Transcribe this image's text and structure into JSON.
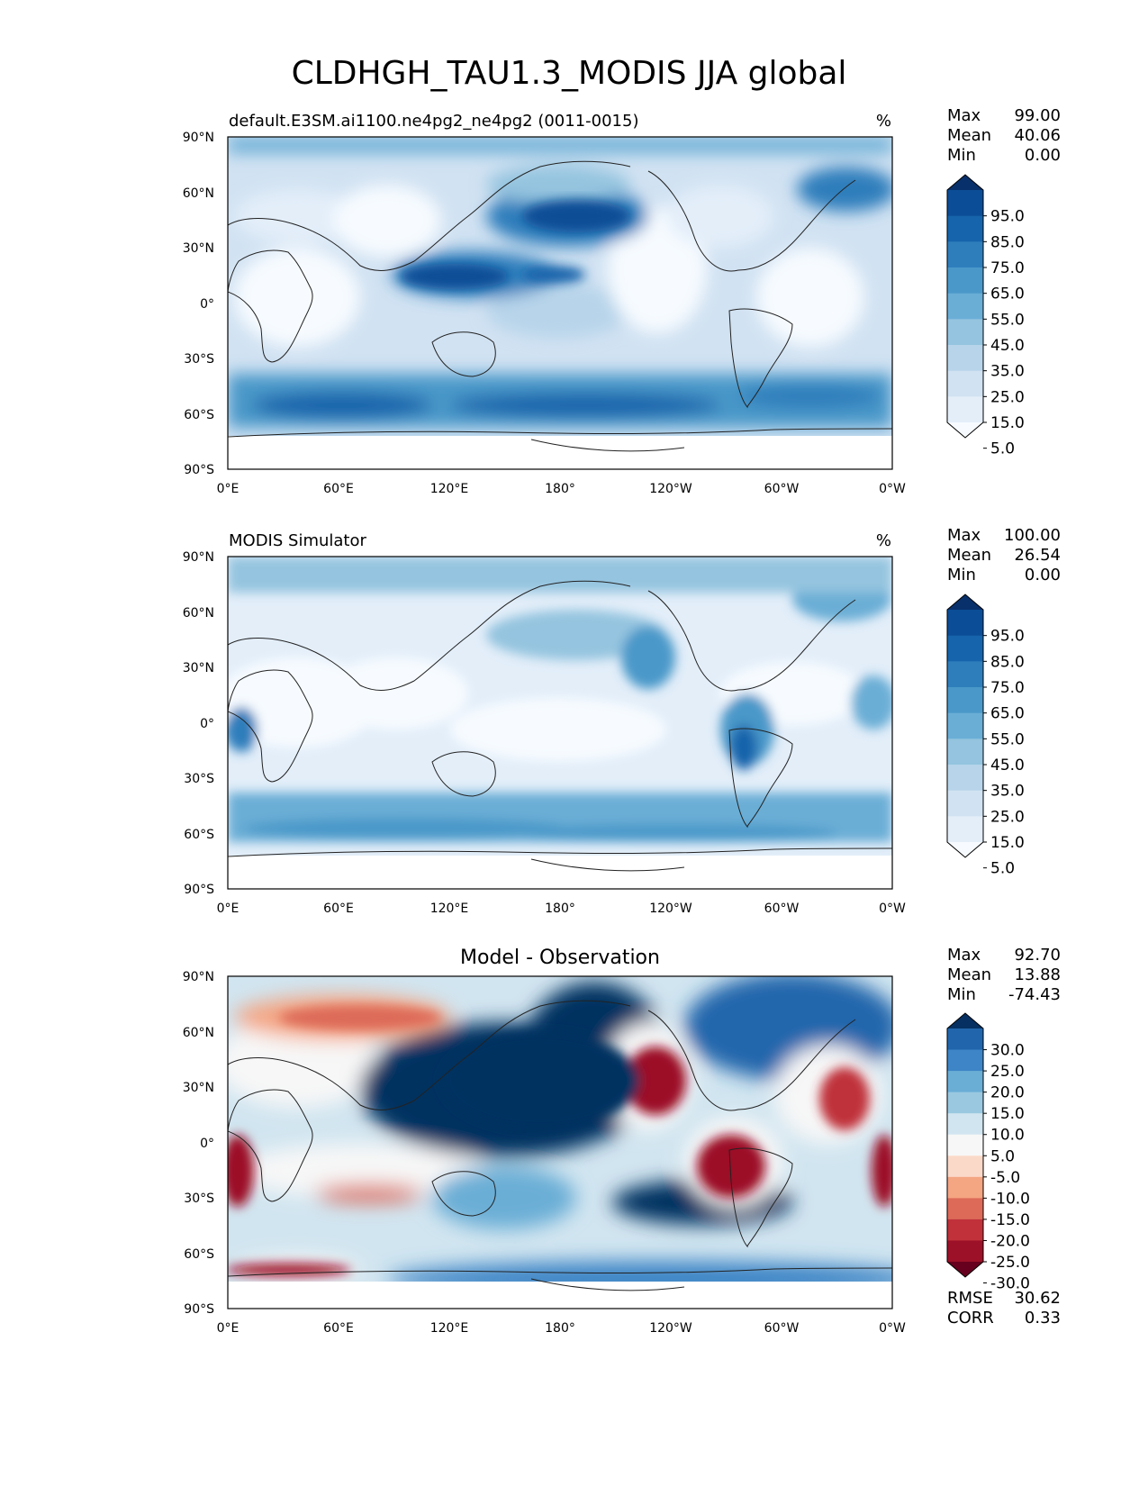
{
  "title": "CLDHGH_TAU1.3_MODIS JJA global",
  "lat_ticks": [
    "90°N",
    "60°N",
    "30°N",
    "0°",
    "30°S",
    "60°S",
    "90°S"
  ],
  "lon_ticks": [
    "0°E",
    "60°E",
    "120°E",
    "180°",
    "120°W",
    "60°W",
    "0°W"
  ],
  "panels": [
    {
      "title": "default.E3SM.ai1100.ne4pg2_ne4pg2 (0011-0015)",
      "units": "%",
      "stats": [
        {
          "label": "Max",
          "value": "99.00"
        },
        {
          "label": "Mean",
          "value": "40.06"
        },
        {
          "label": "Min",
          "value": "0.00"
        }
      ],
      "colorbar_labels": [
        "95.0",
        "85.0",
        "75.0",
        "65.0",
        "55.0",
        "45.0",
        "35.0",
        "25.0",
        "15.0",
        "5.0"
      ],
      "colorbar_colors": [
        "#08306b",
        "#0b4d96",
        "#1664ab",
        "#2f7ebc",
        "#4a98c9",
        "#6aaed6",
        "#94c4df",
        "#b7d4ea",
        "#d1e2f2",
        "#e3eef9",
        "#f7fbff"
      ]
    },
    {
      "title": "MODIS Simulator",
      "units": "%",
      "stats": [
        {
          "label": "Max",
          "value": "100.00"
        },
        {
          "label": "Mean",
          "value": "26.54"
        },
        {
          "label": "Min",
          "value": "0.00"
        }
      ],
      "colorbar_labels": [
        "95.0",
        "85.0",
        "75.0",
        "65.0",
        "55.0",
        "45.0",
        "35.0",
        "25.0",
        "15.0",
        "5.0"
      ],
      "colorbar_colors": [
        "#08306b",
        "#0b4d96",
        "#1664ab",
        "#2f7ebc",
        "#4a98c9",
        "#6aaed6",
        "#94c4df",
        "#b7d4ea",
        "#d1e2f2",
        "#e3eef9",
        "#f7fbff"
      ]
    },
    {
      "title": "Model - Observation",
      "units": "",
      "stats": [
        {
          "label": "Max",
          "value": "92.70"
        },
        {
          "label": "Mean",
          "value": "13.88"
        },
        {
          "label": "Min",
          "value": "-74.43"
        }
      ],
      "colorbar_labels": [
        "30.0",
        "25.0",
        "20.0",
        "15.0",
        "10.0",
        "5.0",
        "-5.0",
        "-10.0",
        "-15.0",
        "-20.0",
        "-25.0",
        "-30.0"
      ],
      "colorbar_colors": [
        "#053061",
        "#2166ac",
        "#3d85c6",
        "#6aaed6",
        "#9ac8e0",
        "#d1e5f0",
        "#f7f7f7",
        "#fbd9c9",
        "#f4a582",
        "#dd6a59",
        "#c0313a",
        "#9c1128",
        "#67001f"
      ],
      "extra_stats": [
        {
          "label": "RMSE",
          "value": "30.62"
        },
        {
          "label": "CORR",
          "value": "0.33"
        }
      ]
    }
  ]
}
